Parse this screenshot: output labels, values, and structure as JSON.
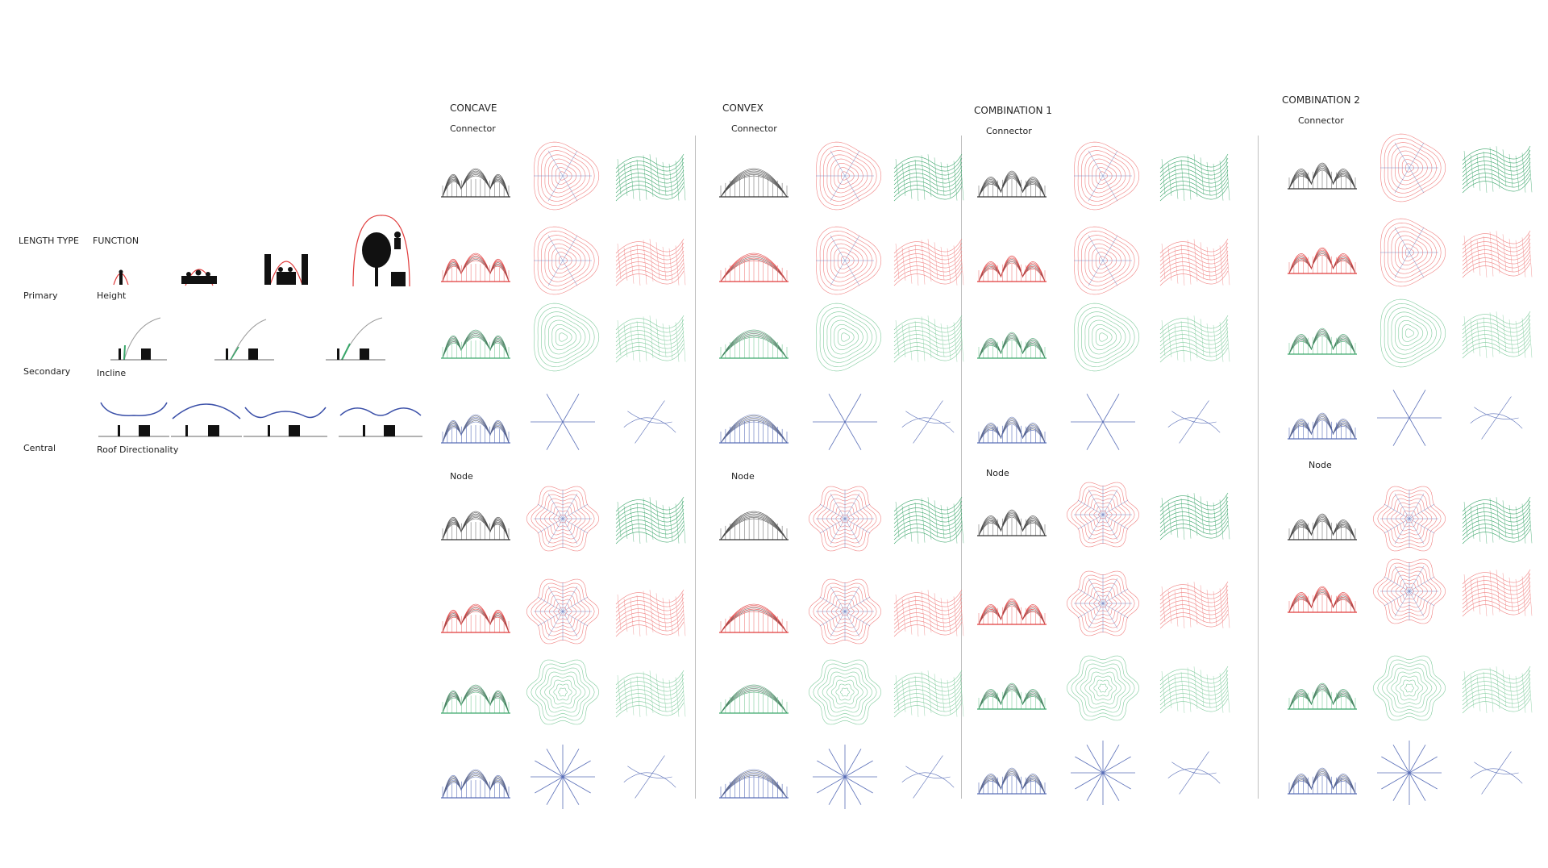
{
  "left_panel": {
    "length_type": "LENGTH TYPE",
    "function": "FUNCTION",
    "rows": [
      {
        "type": "Primary",
        "function": "Height"
      },
      {
        "type": "Secondary",
        "function": "Incline"
      },
      {
        "type": "Central",
        "function": "Roof Directionality"
      }
    ]
  },
  "columns": [
    {
      "title": "CONCAVE",
      "connector": "Connector",
      "node": "Node"
    },
    {
      "title": "CONVEX",
      "connector": "Connector",
      "node": "Node"
    },
    {
      "title": "COMBINATION 1",
      "connector": "Connector",
      "node": "Node"
    },
    {
      "title": "COMBINATION 2",
      "connector": "Connector",
      "node": "Node"
    }
  ],
  "colors": {
    "red": "#e03a3a",
    "light_red": "#f08080",
    "green": "#3aa66a",
    "light_green": "#7fcb9c",
    "blue": "#5a6fb8",
    "dark": "#333333",
    "grey": "#9a9a9a"
  }
}
